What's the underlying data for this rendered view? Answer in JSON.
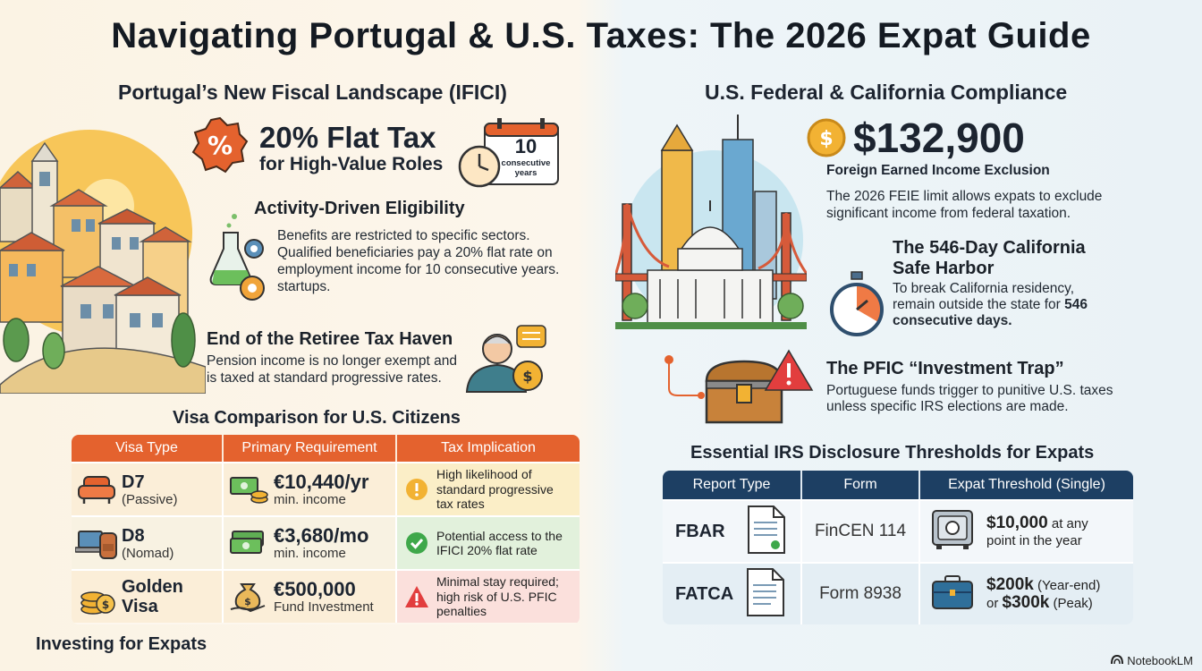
{
  "title": "Navigating Portugal & U.S. Taxes: The 2026 Expat Guide",
  "left": {
    "heading": "Portugal’s New Fiscal Landscape (IFICI)",
    "flat_tax": {
      "rate": "20% Flat Tax",
      "sub": "for High-Value Roles"
    },
    "calendar": {
      "number": "10",
      "label": "consecutive years"
    },
    "activity": {
      "heading": "Activity-Driven Eligibility",
      "body": "Benefits are restricted to specific sectors. Qualified beneficiaries pay a 20% flat rate on employment income for 10 consecutive years. startups."
    },
    "retiree": {
      "heading": "End of the Retiree Tax Haven",
      "body": "Pension income is no longer exempt and is taxed at standard progressive rates."
    },
    "visa_table": {
      "heading": "Visa Comparison for U.S. Citizens",
      "columns": [
        "Visa Type",
        "Primary Requirement",
        "Tax Implication"
      ],
      "rows": [
        {
          "visa": "D7",
          "visa_sub": "(Passive)",
          "req": "€10,440/yr",
          "req_sub": "min. income",
          "tax": "High likelihood of standard progressive tax rates",
          "status_icon": "warning-icon"
        },
        {
          "visa": "D8",
          "visa_sub": "(Nomad)",
          "req": "€3,680/mo",
          "req_sub": "min. income",
          "tax": "Potential access to the IFICI 20% flat rate",
          "status_icon": "check-icon"
        },
        {
          "visa": "Golden Visa",
          "visa_sub": "",
          "req": "€500,000",
          "req_sub": "Fund Investment",
          "tax": "Minimal stay required; high risk of U.S. PFIC penalties",
          "status_icon": "alert-triangle-icon"
        }
      ]
    },
    "bottom_heading": "Investing for Expats"
  },
  "right": {
    "heading": "U.S. Federal & California Compliance",
    "feie": {
      "amount": "$132,900",
      "label": "Foreign Earned Income Exclusion",
      "body": "The 2026 FEIE limit allows expats to exclude significant income from federal taxation."
    },
    "safe_harbor": {
      "heading1": "The 546-Day California",
      "heading2": "Safe Harbor",
      "body_pre": "To break California residency, remain outside the state for",
      "body_bold": "546 consecutive days."
    },
    "pfic": {
      "heading": "The PFIC “Investment Trap”",
      "body": "Portuguese funds trigger to punitive U.S. taxes unless specific IRS elections are made."
    },
    "irs_table": {
      "heading": "Essential IRS Disclosure Thresholds for Expats",
      "columns": [
        "Report Type",
        "Form",
        "Expat Threshold (Single)"
      ],
      "rows": [
        {
          "type": "FBAR",
          "form": "FinCEN 114",
          "thr_bold": "$10,000",
          "thr_rest": " at any point in the year"
        },
        {
          "type": "FATCA",
          "form": "Form 8938",
          "thr_bold": "$200k",
          "thr_rest": " (Year-end)",
          "thr_pre2": "or ",
          "thr_bold2": "$300k",
          "thr_rest2": " (Peak)"
        }
      ]
    }
  },
  "footer": "NotebookLM",
  "colors": {
    "orange": "#e4622e",
    "navy": "#1d3f63",
    "gold": "#f2b233"
  }
}
